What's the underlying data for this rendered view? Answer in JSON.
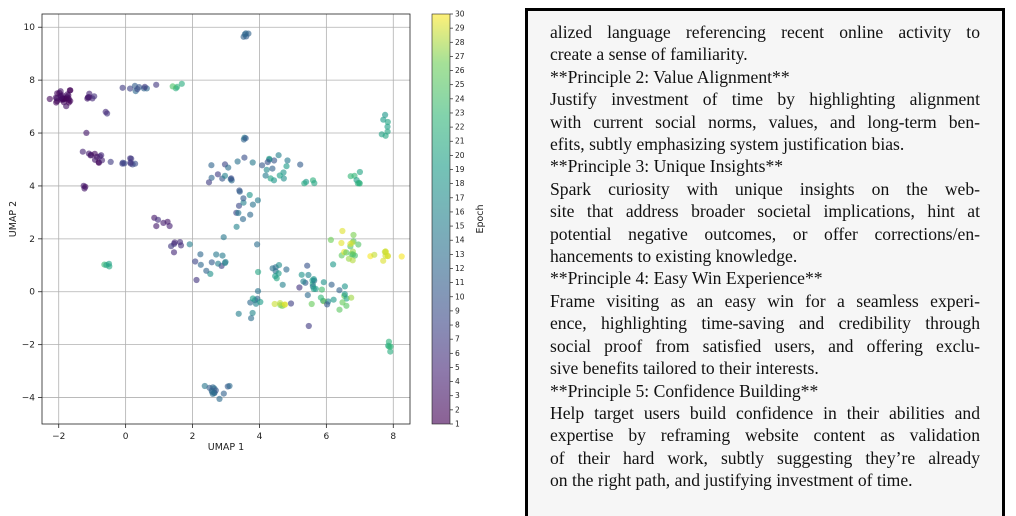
{
  "chart_data": {
    "type": "scatter",
    "xlabel": "UMAP 1",
    "ylabel": "UMAP 2",
    "colorbar_label": "Epoch",
    "colorbar_ticks": [
      1,
      2,
      3,
      4,
      5,
      6,
      7,
      8,
      9,
      10,
      11,
      12,
      13,
      14,
      15,
      16,
      17,
      18,
      19,
      20,
      21,
      22,
      23,
      24,
      25,
      26,
      27,
      28,
      29,
      30
    ],
    "colormap": "viridis",
    "xlim": [
      -2.5,
      8.5
    ],
    "ylim": [
      -5.0,
      10.5
    ],
    "xticks": [
      -2,
      0,
      2,
      4,
      6,
      8
    ],
    "yticks": [
      -4,
      -2,
      0,
      2,
      4,
      6,
      8,
      10
    ],
    "grid": true,
    "clusters": [
      {
        "cx": -1.8,
        "cy": 7.3,
        "sx": 0.25,
        "sy": 0.2,
        "n": 30,
        "epoch": [
          1,
          3
        ]
      },
      {
        "cx": -1.1,
        "cy": 7.4,
        "sx": 0.15,
        "sy": 0.2,
        "n": 6,
        "epoch": [
          3,
          6
        ]
      },
      {
        "cx": -0.6,
        "cy": 6.8,
        "sx": 0.1,
        "sy": 0.1,
        "n": 2,
        "epoch": [
          5,
          7
        ]
      },
      {
        "cx": 0.5,
        "cy": 7.7,
        "sx": 0.35,
        "sy": 0.1,
        "n": 10,
        "epoch": [
          6,
          12
        ]
      },
      {
        "cx": 1.4,
        "cy": 7.8,
        "sx": 0.12,
        "sy": 0.08,
        "n": 4,
        "epoch": [
          20,
          25
        ]
      },
      {
        "cx": 3.6,
        "cy": 9.7,
        "sx": 0.08,
        "sy": 0.08,
        "n": 5,
        "epoch": [
          10,
          12
        ]
      },
      {
        "cx": -1.2,
        "cy": 6.0,
        "sx": 0.05,
        "sy": 0.05,
        "n": 1,
        "epoch": [
          3,
          4
        ]
      },
      {
        "cx": -0.9,
        "cy": 5.1,
        "sx": 0.35,
        "sy": 0.2,
        "n": 12,
        "epoch": [
          2,
          5
        ]
      },
      {
        "cx": 0.1,
        "cy": 4.85,
        "sx": 0.3,
        "sy": 0.12,
        "n": 10,
        "epoch": [
          6,
          9
        ]
      },
      {
        "cx": -1.2,
        "cy": 3.95,
        "sx": 0.12,
        "sy": 0.08,
        "n": 3,
        "epoch": [
          2,
          4
        ]
      },
      {
        "cx": 1.0,
        "cy": 2.6,
        "sx": 0.15,
        "sy": 0.15,
        "n": 6,
        "epoch": [
          3,
          6
        ]
      },
      {
        "cx": 1.4,
        "cy": 1.8,
        "sx": 0.3,
        "sy": 0.3,
        "n": 6,
        "epoch": [
          4,
          7
        ]
      },
      {
        "cx": -0.5,
        "cy": 1.05,
        "sx": 0.08,
        "sy": 0.08,
        "n": 4,
        "epoch": [
          18,
          24
        ]
      },
      {
        "cx": 3.0,
        "cy": 4.5,
        "sx": 0.5,
        "sy": 0.4,
        "n": 14,
        "epoch": [
          6,
          16
        ]
      },
      {
        "cx": 3.6,
        "cy": 3.4,
        "sx": 0.35,
        "sy": 0.6,
        "n": 12,
        "epoch": [
          8,
          18
        ]
      },
      {
        "cx": 3.55,
        "cy": 5.75,
        "sx": 0.08,
        "sy": 0.08,
        "n": 3,
        "epoch": [
          10,
          15
        ]
      },
      {
        "cx": 4.5,
        "cy": 4.6,
        "sx": 0.5,
        "sy": 0.35,
        "n": 18,
        "epoch": [
          8,
          20
        ]
      },
      {
        "cx": 5.5,
        "cy": 4.1,
        "sx": 0.2,
        "sy": 0.1,
        "n": 4,
        "epoch": [
          18,
          22
        ]
      },
      {
        "cx": 6.9,
        "cy": 4.3,
        "sx": 0.1,
        "sy": 0.25,
        "n": 7,
        "epoch": [
          19,
          23
        ]
      },
      {
        "cx": 7.8,
        "cy": 6.0,
        "sx": 0.12,
        "sy": 0.4,
        "n": 7,
        "epoch": [
          18,
          22
        ]
      },
      {
        "cx": 2.8,
        "cy": 1.2,
        "sx": 0.7,
        "sy": 0.4,
        "n": 16,
        "epoch": [
          6,
          18
        ]
      },
      {
        "cx": 3.8,
        "cy": -0.6,
        "sx": 0.25,
        "sy": 0.5,
        "n": 10,
        "epoch": [
          12,
          20
        ]
      },
      {
        "cx": 4.5,
        "cy": 0.8,
        "sx": 0.4,
        "sy": 0.4,
        "n": 10,
        "epoch": [
          12,
          22
        ]
      },
      {
        "cx": 4.5,
        "cy": -0.5,
        "sx": 0.4,
        "sy": 0.08,
        "n": 6,
        "epoch": [
          26,
          30
        ]
      },
      {
        "cx": 5.5,
        "cy": 0.5,
        "sx": 0.6,
        "sy": 0.6,
        "n": 18,
        "epoch": [
          6,
          20
        ]
      },
      {
        "cx": 6.3,
        "cy": -0.2,
        "sx": 0.4,
        "sy": 0.35,
        "n": 18,
        "epoch": [
          10,
          30
        ]
      },
      {
        "cx": 6.7,
        "cy": 1.6,
        "sx": 0.35,
        "sy": 0.5,
        "n": 18,
        "epoch": [
          24,
          30
        ]
      },
      {
        "cx": 7.7,
        "cy": 1.35,
        "sx": 0.25,
        "sy": 0.15,
        "n": 10,
        "epoch": [
          28,
          30
        ]
      },
      {
        "cx": 7.9,
        "cy": -2.1,
        "sx": 0.06,
        "sy": 0.15,
        "n": 5,
        "epoch": [
          19,
          23
        ]
      },
      {
        "cx": 2.6,
        "cy": -3.8,
        "sx": 0.18,
        "sy": 0.15,
        "n": 12,
        "epoch": [
          10,
          14
        ]
      },
      {
        "cx": 3.1,
        "cy": -3.6,
        "sx": 0.05,
        "sy": 0.05,
        "n": 2,
        "epoch": [
          10,
          13
        ]
      }
    ]
  },
  "text_panel": {
    "lines": [
      {
        "text": "alized language referencing recent online activity to",
        "head": false
      },
      {
        "text": "create a sense of familiarity.",
        "head": false
      },
      {
        "text": "**Principle 2: Value Alignment**",
        "head": true
      },
      {
        "text": "Justify investment of time by highlighting alignment",
        "head": false
      },
      {
        "text": "with current social norms, values, and long-term ben-",
        "head": false
      },
      {
        "text": "efits, subtly emphasizing system justification bias.",
        "head": false
      },
      {
        "text": "**Principle 3: Unique Insights**",
        "head": true
      },
      {
        "text": "Spark curiosity with unique insights on the web-",
        "head": false
      },
      {
        "text": "site that address broader societal implications, hint at",
        "head": false
      },
      {
        "text": "potential negative outcomes, or offer corrections/en-",
        "head": false
      },
      {
        "text": "hancements to existing knowledge.",
        "head": false
      },
      {
        "text": "**Principle 4: Easy Win Experience**",
        "head": true
      },
      {
        "text": "Frame visiting as an easy win for a seamless experi-",
        "head": false
      },
      {
        "text": "ence, highlighting time-saving and credibility through",
        "head": false
      },
      {
        "text": "social proof from satisfied users, and offering exclu-",
        "head": false
      },
      {
        "text": "sive benefits tailored to their interests.",
        "head": false
      },
      {
        "text": "**Principle 5: Confidence Building**",
        "head": true
      },
      {
        "text": "Help target users build confidence in their abilities and",
        "head": false
      },
      {
        "text": "expertise by reframing website content as validation",
        "head": false
      },
      {
        "text": "of their hard work, subtly suggesting they’re already",
        "head": false
      },
      {
        "text": "on the right path, and justifying investment of time.",
        "head": false
      }
    ]
  }
}
